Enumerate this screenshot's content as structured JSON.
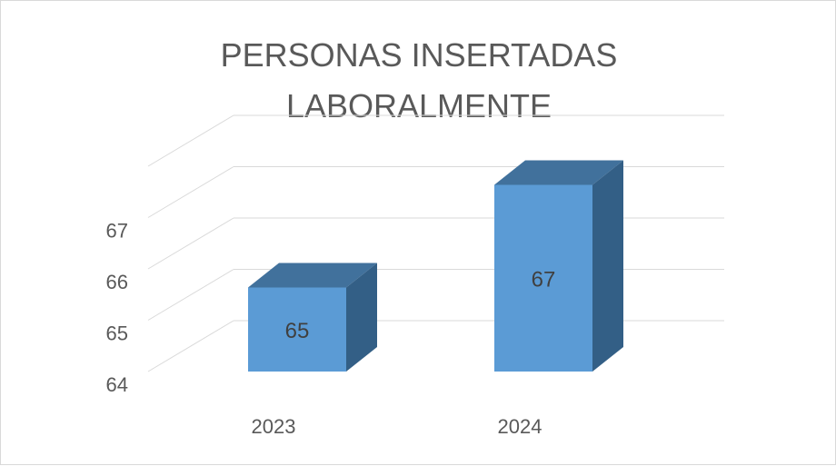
{
  "chart_data": {
    "type": "bar",
    "title": "PERSONAS INSERTADAS LABORALMENTE",
    "title_lines": [
      "PERSONAS INSERTADAS",
      "LABORALMENTE"
    ],
    "categories": [
      "2023",
      "2024"
    ],
    "values": [
      65,
      67
    ],
    "data_labels": [
      "65",
      "67"
    ],
    "xlabel": "",
    "ylabel": "",
    "ylim": [
      64,
      67
    ],
    "y_ticks": [
      64,
      65,
      66,
      67
    ],
    "grid": true,
    "three_d": true,
    "colors": {
      "bar_front": "#5b9bd5",
      "bar_top": "#41719c",
      "bar_side": "#335f86",
      "gridline": "#d9d9d9",
      "text": "#595959"
    }
  }
}
